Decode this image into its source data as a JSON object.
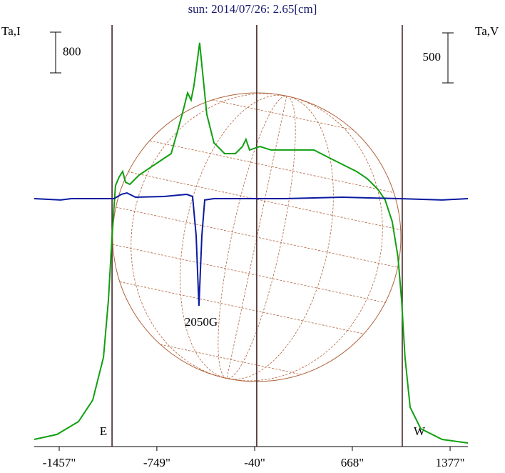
{
  "chart_data": {
    "type": "line",
    "title": "sun: 2014/07/26: 2.65[cm]",
    "y_label": "Ta,I",
    "y2_label": "Ta,V",
    "xlim": [
      -1638,
      1506
    ],
    "xticks": [
      {
        "value": -1457,
        "label": "-1457\""
      },
      {
        "value": -749,
        "label": "-749\""
      },
      {
        "value": -40,
        "label": "-40\""
      },
      {
        "value": 668,
        "label": "668\""
      },
      {
        "value": 1377,
        "label": "1377\""
      }
    ],
    "ylim": [
      0,
      8283
    ],
    "y2lim": [
      -2478,
      1735
    ],
    "scale_bar_y": 800,
    "scale_bar_y2": 500,
    "limb_lines": [
      -1074,
      -25,
      1030
    ],
    "annotations": [
      "E",
      "W",
      "2050G"
    ],
    "series": [
      {
        "color": "#10a010",
        "x": [
          -1638,
          -1473,
          -1317,
          -1214,
          -1136,
          -1100,
          -1074,
          -1049,
          -1023,
          -997,
          -976,
          -945,
          -878,
          -800,
          -723,
          -645,
          -594,
          -552,
          -526,
          -501,
          -480,
          -459,
          -439,
          -418,
          -387,
          -335,
          -258,
          -180,
          -128,
          -103,
          -77,
          -1,
          78,
          182,
          285,
          389,
          492,
          595,
          699,
          776,
          854,
          906,
          957,
          999,
          1025,
          1050,
          1087,
          1164,
          1319,
          1506
        ],
        "values": [
          140,
          239,
          491,
          913,
          1755,
          2878,
          4142,
          5125,
          5293,
          5405,
          5195,
          5153,
          5335,
          5476,
          5616,
          5756,
          6248,
          6669,
          6950,
          6809,
          7090,
          7511,
          7933,
          7371,
          6529,
          5967,
          5756,
          5756,
          5897,
          6037,
          5827,
          5897,
          5827,
          5827,
          5827,
          5827,
          5686,
          5546,
          5405,
          5265,
          5054,
          4844,
          4423,
          3721,
          2878,
          1755,
          772,
          351,
          140,
          70
        ]
      },
      {
        "color": "#0a1aa0",
        "axis": "y2",
        "x": [
          -1638,
          -1447,
          -1369,
          -1059,
          -1007,
          -966,
          -904,
          -697,
          -532,
          -490,
          -464,
          -444,
          -423,
          -402,
          -335,
          182,
          595,
          1009,
          1319,
          1506
        ],
        "values": [
          0,
          -14,
          0,
          0,
          43,
          57,
          14,
          21,
          43,
          21,
          -371,
          -1071,
          -371,
          -14,
          0,
          0,
          14,
          0,
          -14,
          0
        ]
      }
    ]
  }
}
